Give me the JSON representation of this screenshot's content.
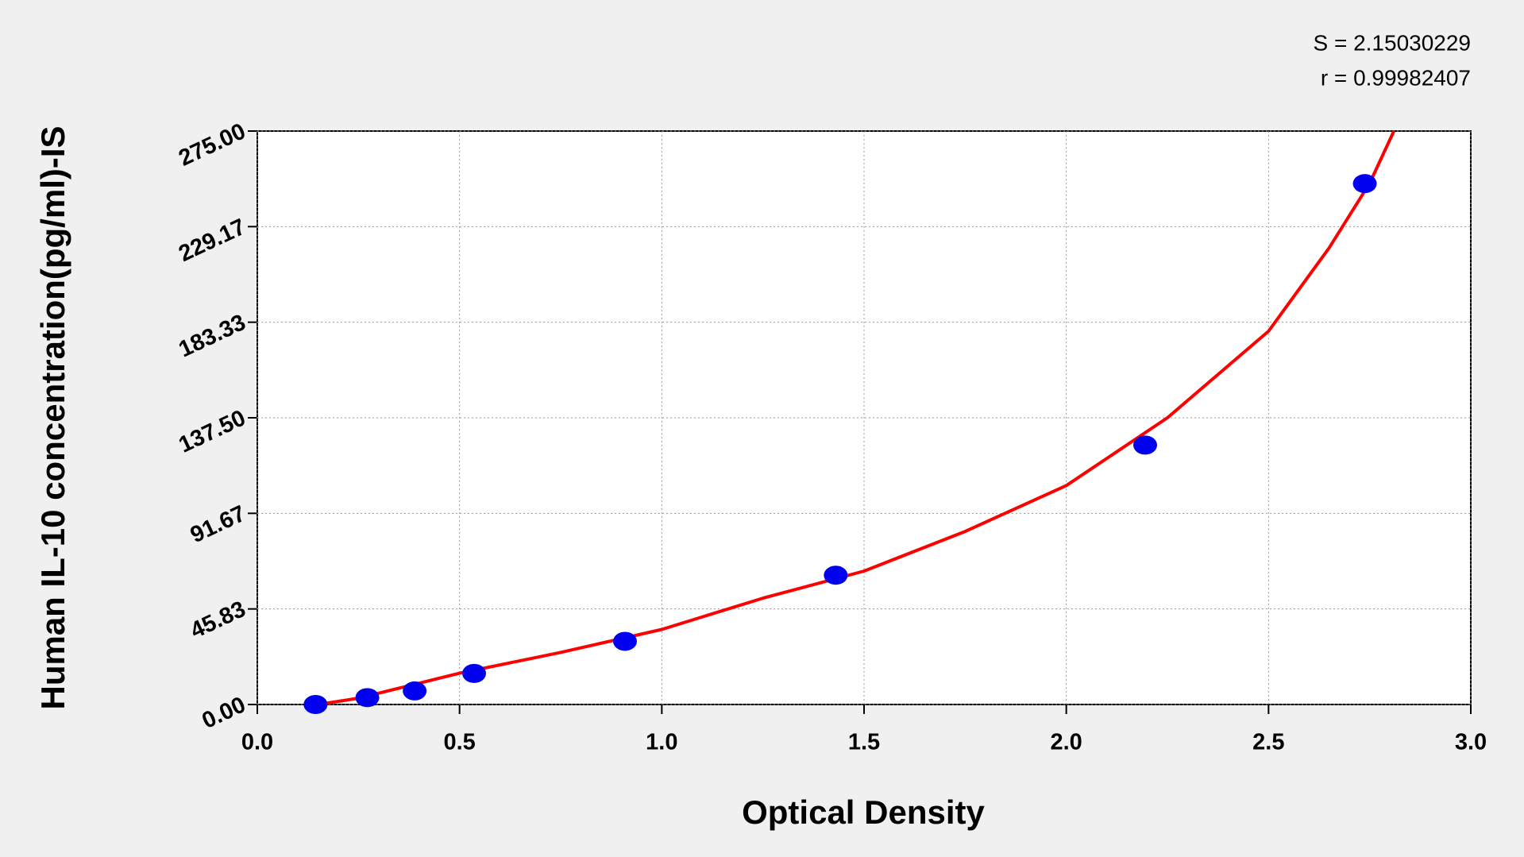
{
  "chart_data": {
    "type": "scatter",
    "x_label": "Optical Density",
    "y_label": "Human IL-10 concentration(pg/ml)-IS",
    "annotations": [
      "S = 2.15030229",
      "r = 0.99982407"
    ],
    "x": [
      0.144,
      0.272,
      0.389,
      0.536,
      0.909,
      1.43,
      2.195,
      2.738
    ],
    "series": [
      {
        "color": "#0000ee",
        "values": [
          0,
          3.3,
          6.5,
          14.9,
          30.3,
          62,
          124.4,
          249.8
        ]
      }
    ],
    "fit_curve": {
      "color": "#ff0000",
      "x": [
        0.15,
        0.25,
        0.5,
        0.75,
        1.0,
        1.25,
        1.5,
        1.75,
        2.0,
        2.25,
        2.5,
        2.65,
        2.75,
        2.81
      ],
      "y": [
        0,
        3,
        15,
        25,
        36,
        51,
        64,
        83,
        105,
        137.5,
        179,
        219,
        250,
        275
      ]
    },
    "xlim": [
      0,
      3
    ],
    "ylim": [
      0,
      275
    ],
    "xticks": [
      {
        "value": 0,
        "label": "0.0"
      },
      {
        "value": 0.5,
        "label": "0.5"
      },
      {
        "value": 1,
        "label": "1.0"
      },
      {
        "value": 1.5,
        "label": "1.5"
      },
      {
        "value": 2,
        "label": "2.0"
      },
      {
        "value": 2.5,
        "label": "2.5"
      },
      {
        "value": 3,
        "label": "3.0"
      }
    ],
    "yticks": [
      {
        "value": 0,
        "label": "0.00"
      },
      {
        "value": 45.83,
        "label": "45.83"
      },
      {
        "value": 91.67,
        "label": "91.67"
      },
      {
        "value": 137.5,
        "label": "137.50"
      },
      {
        "value": 183.33,
        "label": "183.33"
      },
      {
        "value": 229.17,
        "label": "229.17"
      },
      {
        "value": 275,
        "label": "275.00"
      }
    ],
    "grid": true
  }
}
